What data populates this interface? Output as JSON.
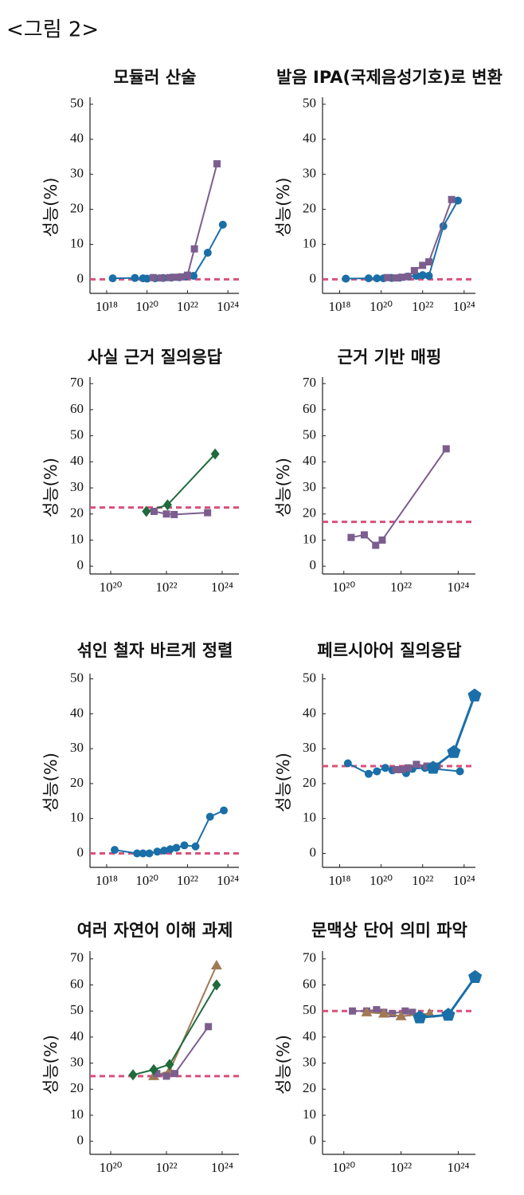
{
  "header": "<그림 2>",
  "chart_data": [
    {
      "type": "line",
      "title": "모듈러 산술",
      "ylabel": "성능(%)",
      "log_x": true,
      "xlim": [
        1.5e+17,
        3.5e+24
      ],
      "xticks": [
        {
          "value": 1e+18,
          "label": "10¹⁸"
        },
        {
          "value": 1e+20,
          "label": "10²⁰"
        },
        {
          "value": 1e+22,
          "label": "10²²"
        },
        {
          "value": 1e+24,
          "label": "10²⁴"
        }
      ],
      "ylim": [
        -4,
        52
      ],
      "yticks": [
        0,
        10,
        20,
        30,
        40,
        50
      ],
      "baseline": 0,
      "baseline_color": "#d9507a",
      "series": [
        {
          "color": "#1a6fa8",
          "marker": "circle",
          "x": [
            2e+18,
            2.5e+19,
            6.3e+19,
            1e+20,
            2.5e+20,
            6.3e+20,
            1.6e+21,
            4e+21,
            8e+21,
            2e+22,
            1e+23,
            5.6e+23
          ],
          "values": [
            0.3,
            0.4,
            0.3,
            0.2,
            0.3,
            0.4,
            0.5,
            0.6,
            0.8,
            1.0,
            7.6,
            15.6
          ]
        },
        {
          "color": "#7b5e8e",
          "marker": "square",
          "x": [
            2e+20,
            5e+20,
            1.3e+21,
            2.5e+21,
            5e+21,
            1e+22,
            2.2e+22,
            2.9e+23
          ],
          "values": [
            0.5,
            0.4,
            0.5,
            0.6,
            0.7,
            1.2,
            8.7,
            33.0
          ]
        }
      ]
    },
    {
      "type": "line",
      "title": "발음 IPA(국제음성기호)로 변환",
      "ylabel": "성능(%)",
      "log_x": true,
      "xlim": [
        1.5e+17,
        3.5e+24
      ],
      "xticks": [
        {
          "value": 1e+18,
          "label": "10¹⁸"
        },
        {
          "value": 1e+20,
          "label": "10²⁰"
        },
        {
          "value": 1e+22,
          "label": "10²²"
        },
        {
          "value": 1e+24,
          "label": "10²⁴"
        }
      ],
      "ylim": [
        -4,
        52
      ],
      "yticks": [
        0,
        10,
        20,
        30,
        40,
        50
      ],
      "baseline": 0,
      "baseline_color": "#d9507a",
      "series": [
        {
          "color": "#1a6fa8",
          "marker": "circle",
          "x": [
            2e+18,
            2.5e+19,
            6.3e+19,
            1.3e+20,
            3.2e+20,
            8e+20,
            2e+21,
            5e+21,
            1e+22,
            2e+22,
            1e+23,
            5e+23
          ],
          "values": [
            0.2,
            0.3,
            0.3,
            0.3,
            0.4,
            0.5,
            0.8,
            1.0,
            1.2,
            1.0,
            15.2,
            22.5
          ]
        },
        {
          "color": "#7b5e8e",
          "marker": "square",
          "x": [
            2e+20,
            5e+20,
            1e+21,
            2e+21,
            4e+21,
            1e+22,
            2e+22,
            2.5e+23
          ],
          "values": [
            0.5,
            0.4,
            0.6,
            0.8,
            2.5,
            4,
            5,
            22.8
          ]
        }
      ]
    },
    {
      "type": "line",
      "title": "사실 근거 질의응답",
      "ylabel": "성능(%)",
      "log_x": true,
      "xlim": [
        1.8e+19,
        4e+24
      ],
      "xticks": [
        {
          "value": 1e+20,
          "label": "10²⁰"
        },
        {
          "value": 1e+22,
          "label": "10²²"
        },
        {
          "value": 1e+24,
          "label": "10²⁴"
        }
      ],
      "ylim": [
        -3,
        72.5
      ],
      "yticks": [
        0,
        10,
        20,
        30,
        40,
        50,
        60,
        70
      ],
      "baseline": 22.5,
      "baseline_color": "#d9507a",
      "series": [
        {
          "color": "#1e6b3c",
          "marker": "diamond",
          "x": [
            1.9e+21,
            1.1e+22,
            5.6e+23
          ],
          "values": [
            21,
            23.5,
            43
          ]
        },
        {
          "color": "#7b5e8e",
          "marker": "square",
          "x": [
            3.6e+21,
            1e+22,
            1.9e+22,
            3e+23
          ],
          "values": [
            21,
            20,
            19.8,
            20.5
          ]
        }
      ]
    },
    {
      "type": "line",
      "title": "근거 기반 매핑",
      "ylabel": "성능(%)",
      "log_x": true,
      "xlim": [
        1.8e+19,
        4e+24
      ],
      "xticks": [
        {
          "value": 1e+20,
          "label": "10²⁰"
        },
        {
          "value": 1e+22,
          "label": "10²²"
        },
        {
          "value": 1e+24,
          "label": "10²⁴"
        }
      ],
      "ylim": [
        -3,
        72.5
      ],
      "yticks": [
        0,
        10,
        20,
        30,
        40,
        50,
        60,
        70
      ],
      "baseline": 17,
      "baseline_color": "#d9507a",
      "series": [
        {
          "color": "#7b5e8e",
          "marker": "square",
          "x": [
            1.8e+20,
            5.2e+20,
            1.3e+21,
            2.2e+21,
            3.8e+23
          ],
          "values": [
            11,
            12,
            8,
            10,
            45
          ]
        }
      ]
    },
    {
      "type": "line",
      "title": "섞인 철자 바르게 정렬",
      "ylabel": "성능(%)",
      "log_x": true,
      "xlim": [
        1.5e+17,
        3.5e+24
      ],
      "xticks": [
        {
          "value": 1e+18,
          "label": "10¹⁸"
        },
        {
          "value": 1e+20,
          "label": "10²⁰"
        },
        {
          "value": 1e+22,
          "label": "10²²"
        },
        {
          "value": 1e+24,
          "label": "10²⁴"
        }
      ],
      "ylim": [
        -4,
        51.5
      ],
      "yticks": [
        0,
        10,
        20,
        30,
        40,
        50
      ],
      "baseline": 0,
      "baseline_color": "#d9507a",
      "series": [
        {
          "color": "#1a6fa8",
          "marker": "circle",
          "x": [
            2.5e+18,
            3.2e+19,
            6.3e+19,
            1.3e+20,
            3.2e+20,
            7e+20,
            1.4e+21,
            2.8e+21,
            7e+21,
            2.5e+22,
            1.3e+23,
            6.3e+23
          ],
          "values": [
            1,
            0,
            0,
            0,
            0.5,
            0.8,
            1.2,
            1.6,
            2.3,
            2,
            10.5,
            12.3
          ]
        }
      ]
    },
    {
      "type": "line",
      "title": "페르시아어 질의응답",
      "ylabel": "성능(%)",
      "log_x": true,
      "xlim": [
        1.5e+17,
        3.5e+24
      ],
      "xticks": [
        {
          "value": 1e+18,
          "label": "10¹⁸"
        },
        {
          "value": 1e+20,
          "label": "10²⁰"
        },
        {
          "value": 1e+22,
          "label": "10²²"
        },
        {
          "value": 1e+24,
          "label": "10²⁴"
        }
      ],
      "ylim": [
        -4,
        51.5
      ],
      "yticks": [
        0,
        10,
        20,
        30,
        40,
        50
      ],
      "baseline": 25,
      "baseline_color": "#d9507a",
      "series": [
        {
          "color": "#1a6fa8",
          "marker": "circle",
          "x": [
            2.5e+18,
            2.5e+19,
            6.3e+19,
            1.6e+20,
            3.5e+20,
            1.6e+21,
            3.2e+21,
            1.3e+22,
            6.3e+23
          ],
          "values": [
            25.8,
            22.8,
            23.5,
            24.5,
            23.8,
            23,
            24.2,
            24.5,
            23.5
          ]
        },
        {
          "color": "#7b5e8e",
          "marker": "square",
          "x": [
            5e+20,
            1e+21,
            2e+21,
            5e+21,
            1.6e+22,
            5e+22
          ],
          "values": [
            24,
            24,
            24.5,
            25.5,
            25,
            25
          ]
        },
        {
          "color": "#1a6fa8",
          "marker": "pentagon",
          "x": [
            3.2e+22,
            3.2e+23,
            3.2e+24
          ],
          "values": [
            24.5,
            29,
            45.2
          ]
        }
      ]
    },
    {
      "type": "line",
      "title": "여러 자연어 이해 과제",
      "ylabel": "성능(%)",
      "log_x": true,
      "xlim": [
        1.8e+19,
        4e+24
      ],
      "xticks": [
        {
          "value": 1e+20,
          "label": "10²⁰"
        },
        {
          "value": 1e+22,
          "label": "10²²"
        },
        {
          "value": 1e+24,
          "label": "10²⁴"
        }
      ],
      "ylim": [
        -5,
        73
      ],
      "yticks": [
        0,
        10,
        20,
        30,
        40,
        50,
        60,
        70
      ],
      "baseline": 25,
      "baseline_color": "#d9507a",
      "series": [
        {
          "color": "#a07a55",
          "marker": "triangle",
          "x": [
            3.5e+21,
            1.3e+22,
            6.3e+23
          ],
          "values": [
            25,
            27,
            67.5
          ]
        },
        {
          "color": "#7b5e8e",
          "marker": "square",
          "x": [
            4.5e+21,
            1e+22,
            2e+22,
            3.2e+23
          ],
          "values": [
            26,
            25,
            26,
            44
          ]
        },
        {
          "color": "#1e6b3c",
          "marker": "diamond",
          "x": [
            6.3e+20,
            3.5e+21,
            1.3e+22,
            6.3e+23
          ],
          "values": [
            25.5,
            27.5,
            29.5,
            60
          ]
        }
      ]
    },
    {
      "type": "line",
      "title": "문맥상 단어 의미 파악",
      "ylabel": "성능(%)",
      "log_x": true,
      "xlim": [
        1.8e+19,
        4e+24
      ],
      "xticks": [
        {
          "value": 1e+20,
          "label": "10²⁰"
        },
        {
          "value": 1e+22,
          "label": "10²²"
        },
        {
          "value": 1e+24,
          "label": "10²⁴"
        }
      ],
      "ylim": [
        -5,
        73
      ],
      "yticks": [
        0,
        10,
        20,
        30,
        40,
        50,
        60,
        70
      ],
      "baseline": 50,
      "baseline_color": "#d9507a",
      "series": [
        {
          "color": "#7b5e8e",
          "marker": "square",
          "x": [
            2e+20,
            6.3e+20,
            1.4e+21,
            2.5e+21,
            5e+21,
            1.4e+22,
            2.5e+22
          ],
          "values": [
            50,
            50,
            50.5,
            49.5,
            49,
            50,
            49.5
          ]
        },
        {
          "color": "#a07a55",
          "marker": "triangle",
          "x": [
            6.3e+20,
            2.5e+21,
            1e+22,
            1e+23
          ],
          "values": [
            49.5,
            49,
            48,
            49
          ]
        },
        {
          "color": "#1a6fa8",
          "marker": "pentagon",
          "x": [
            4.5e+22,
            4.5e+23,
            3.9e+24
          ],
          "values": [
            47.5,
            48.5,
            63
          ]
        }
      ]
    }
  ]
}
